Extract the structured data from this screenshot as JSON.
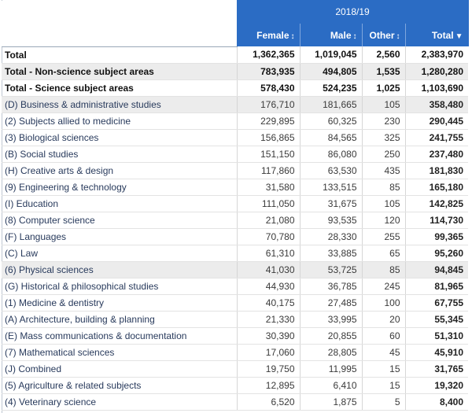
{
  "header": {
    "year": "2018/19",
    "columns": [
      {
        "label": "Female",
        "sort_icon": "updown-arrow-icon"
      },
      {
        "label": "Male",
        "sort_icon": "updown-arrow-icon"
      },
      {
        "label": "Other",
        "sort_icon": "updown-arrow-icon"
      },
      {
        "label": "Total",
        "sort_icon": "down-triangle-icon"
      }
    ]
  },
  "rows": [
    {
      "label": "Total",
      "female": "1,362,365",
      "male": "1,019,045",
      "other": "2,560",
      "total": "2,383,970"
    },
    {
      "label": "Total - Non-science subject areas",
      "female": "783,935",
      "male": "494,805",
      "other": "1,535",
      "total": "1,280,280"
    },
    {
      "label": "Total - Science subject areas",
      "female": "578,430",
      "male": "524,235",
      "other": "1,025",
      "total": "1,103,690"
    },
    {
      "label": "(D) Business & administrative studies",
      "female": "176,710",
      "male": "181,665",
      "other": "105",
      "total": "358,480"
    },
    {
      "label": "(2) Subjects allied to medicine",
      "female": "229,895",
      "male": "60,325",
      "other": "230",
      "total": "290,445"
    },
    {
      "label": "(3) Biological sciences",
      "female": "156,865",
      "male": "84,565",
      "other": "325",
      "total": "241,755"
    },
    {
      "label": "(B) Social studies",
      "female": "151,150",
      "male": "86,080",
      "other": "250",
      "total": "237,480"
    },
    {
      "label": "(H) Creative arts & design",
      "female": "117,860",
      "male": "63,530",
      "other": "435",
      "total": "181,830"
    },
    {
      "label": "(9) Engineering & technology",
      "female": "31,580",
      "male": "133,515",
      "other": "85",
      "total": "165,180"
    },
    {
      "label": "(I) Education",
      "female": "111,050",
      "male": "31,675",
      "other": "105",
      "total": "142,825"
    },
    {
      "label": "(8) Computer science",
      "female": "21,080",
      "male": "93,535",
      "other": "120",
      "total": "114,730"
    },
    {
      "label": "(F) Languages",
      "female": "70,780",
      "male": "28,330",
      "other": "255",
      "total": "99,365"
    },
    {
      "label": "(C) Law",
      "female": "61,310",
      "male": "33,885",
      "other": "65",
      "total": "95,260"
    },
    {
      "label": "(6) Physical sciences",
      "female": "41,030",
      "male": "53,725",
      "other": "85",
      "total": "94,845"
    },
    {
      "label": "(G) Historical & philosophical studies",
      "female": "44,930",
      "male": "36,785",
      "other": "245",
      "total": "81,965"
    },
    {
      "label": "(1) Medicine & dentistry",
      "female": "40,175",
      "male": "27,485",
      "other": "100",
      "total": "67,755"
    },
    {
      "label": "(A) Architecture, building & planning",
      "female": "21,330",
      "male": "33,995",
      "other": "20",
      "total": "55,345"
    },
    {
      "label": "(E) Mass communications & documentation",
      "female": "30,390",
      "male": "20,855",
      "other": "60",
      "total": "51,310"
    },
    {
      "label": "(7) Mathematical sciences",
      "female": "17,060",
      "male": "28,805",
      "other": "45",
      "total": "45,910"
    },
    {
      "label": "(J) Combined",
      "female": "19,750",
      "male": "11,995",
      "other": "15",
      "total": "31,765"
    },
    {
      "label": "(5) Agriculture & related subjects",
      "female": "12,895",
      "male": "6,410",
      "other": "15",
      "total": "19,320"
    },
    {
      "label": "(4) Veterinary science",
      "female": "6,520",
      "male": "1,875",
      "other": "5",
      "total": "8,400"
    }
  ]
}
